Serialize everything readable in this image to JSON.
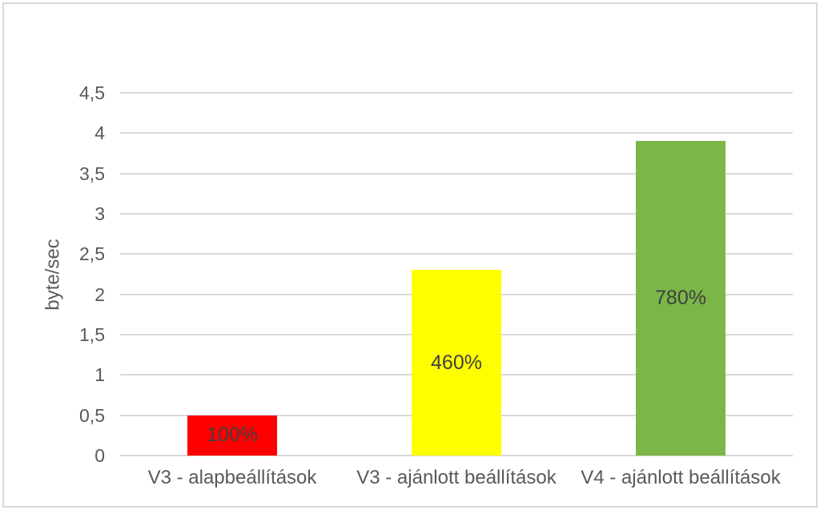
{
  "chart_data": {
    "type": "bar",
    "title": "",
    "xlabel": "",
    "ylabel": "byte/sec",
    "categories": [
      "V3 - alapbeállítások",
      "V3 - ajánlott beállítások",
      "V4 - ajánlott beállítások"
    ],
    "values": [
      0.5,
      2.3,
      3.9
    ],
    "bar_labels": [
      "100%",
      "460%",
      "780%"
    ],
    "bar_colors": [
      "#ff0000",
      "#ffff00",
      "#7ab648"
    ],
    "ylim": [
      0,
      4.5
    ],
    "yticks": [
      {
        "value": 0,
        "label": "0"
      },
      {
        "value": 0.5,
        "label": "0,5"
      },
      {
        "value": 1,
        "label": "1"
      },
      {
        "value": 1.5,
        "label": "1,5"
      },
      {
        "value": 2,
        "label": "2"
      },
      {
        "value": 2.5,
        "label": "2,5"
      },
      {
        "value": 3,
        "label": "3"
      },
      {
        "value": 3.5,
        "label": "3,5"
      },
      {
        "value": 4,
        "label": "4"
      },
      {
        "value": 4.5,
        "label": "4,5"
      }
    ],
    "grid": true,
    "legend": "none",
    "label_color": "#404040",
    "axis_text_color": "#595959",
    "gridline_color": "#d9d9d9",
    "frame_border_color": "#d9d9d9"
  }
}
